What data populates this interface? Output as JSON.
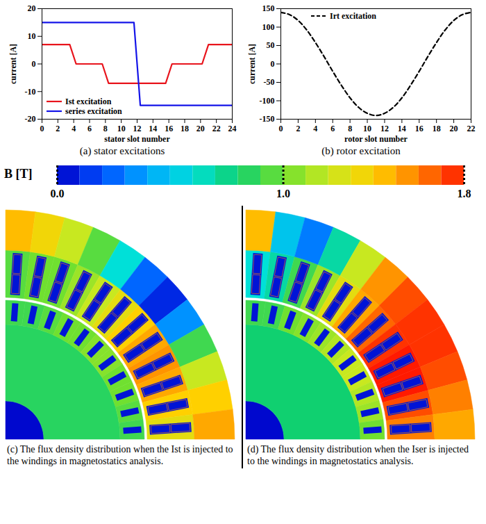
{
  "chart_data": [
    {
      "type": "line",
      "caption": "(a) stator excitations",
      "x_label": "stator slot number",
      "y_label": "current [A]",
      "xlim": [
        0,
        24
      ],
      "xticks": [
        0,
        2,
        4,
        6,
        8,
        10,
        12,
        14,
        16,
        18,
        20,
        22,
        24
      ],
      "ylim": [
        -20,
        20
      ],
      "yticks": [
        -20,
        -10,
        0,
        10,
        20
      ],
      "grid": false,
      "legend": "lower left",
      "series": [
        {
          "name": "Ist excitation",
          "color": "#e8141c",
          "line_style": "solid",
          "marker": "none",
          "x": [
            0,
            3.5,
            4.3,
            7.6,
            8.4,
            15.6,
            16.4,
            20.2,
            21,
            24
          ],
          "values": [
            7,
            7,
            0,
            0,
            -7,
            -7,
            0,
            0,
            7,
            7
          ]
        },
        {
          "name": "series excitation",
          "color": "#1414e8",
          "line_style": "solid",
          "marker": "none",
          "x": [
            0,
            11.6,
            12.4,
            24
          ],
          "values": [
            15,
            15,
            -15,
            -15
          ]
        }
      ]
    },
    {
      "type": "line",
      "caption": "(b) rotor excitation",
      "x_label": "rotor slot number",
      "y_label": "current [A]",
      "xlim": [
        0,
        22
      ],
      "xticks": [
        0,
        2,
        4,
        6,
        8,
        10,
        12,
        14,
        16,
        18,
        20,
        22
      ],
      "ylim": [
        -150,
        150
      ],
      "yticks": [
        -150,
        -100,
        -50,
        0,
        50,
        100,
        150
      ],
      "grid": false,
      "legend": "upper left",
      "series": [
        {
          "name": "Irt excitation",
          "color": "#000000",
          "line_style": "dashed",
          "marker": "none",
          "x": [
            0,
            1,
            2,
            3,
            4,
            5,
            6,
            7,
            8,
            9,
            10,
            11,
            12,
            13,
            14,
            15,
            16,
            17,
            18,
            19,
            20,
            21,
            22
          ],
          "values": [
            140,
            134,
            118,
            92,
            58,
            20,
            -20,
            -58,
            -92,
            -118,
            -134,
            -140,
            -134,
            -118,
            -92,
            -58,
            -20,
            20,
            58,
            92,
            118,
            134,
            140
          ]
        }
      ]
    }
  ],
  "colorbar": {
    "label": "B [T]",
    "range": [
      0,
      1.8
    ],
    "ticks": [
      {
        "value": 0,
        "label": "0.0"
      },
      {
        "value": 1,
        "label": "1.0"
      },
      {
        "value": 1.8,
        "label": "1.8"
      }
    ],
    "colors": [
      "#0000c8",
      "#0050ff",
      "#00a8ff",
      "#00e0d8",
      "#10d070",
      "#70e030",
      "#c8e820",
      "#ffd000",
      "#ff8000",
      "#ff1a00"
    ]
  },
  "field_plots": [
    {
      "type": "flux_density_map",
      "caption": "(c) The flux density distribution when the Ist is injected to the windings in magnetostatics analysis.",
      "stator_yoke_B": [
        1.45,
        1.35,
        1.2,
        0.95,
        0.6,
        0.25,
        0.1,
        0.35,
        0.9,
        1.2,
        1.4,
        1.5
      ],
      "stator_teeth_B": [
        0.95,
        1.0,
        1.0,
        1.1,
        1.2,
        1.3,
        1.4,
        1.5,
        1.55,
        1.5,
        1.4,
        1.3
      ],
      "rotor_teeth_B": [
        0.9,
        0.9,
        0.95,
        1.0,
        1.0,
        1.05,
        1.05,
        1.0,
        1.0,
        0.95,
        0.9
      ],
      "rotor_core_B": 0.85,
      "shaft_B": 0.02,
      "slot_B": 0.05
    },
    {
      "type": "flux_density_map",
      "caption": "(d) The flux density distribution when the Iser is injected to the windings in magnetostatics analysis.",
      "stator_yoke_B": [
        1.45,
        0.5,
        0.3,
        0.7,
        1.2,
        1.55,
        1.7,
        1.75,
        1.75,
        1.7,
        1.6,
        1.5
      ],
      "stator_teeth_B": [
        0.6,
        0.7,
        0.9,
        1.1,
        1.3,
        1.5,
        1.65,
        1.75,
        1.8,
        1.8,
        1.7,
        1.6
      ],
      "rotor_teeth_B": [
        0.9,
        0.9,
        1.0,
        1.05,
        1.1,
        1.15,
        1.2,
        1.2,
        1.15,
        1.1,
        1.0
      ],
      "rotor_core_B": 0.8,
      "shaft_B": 0.02,
      "slot_B": 0.05
    }
  ]
}
